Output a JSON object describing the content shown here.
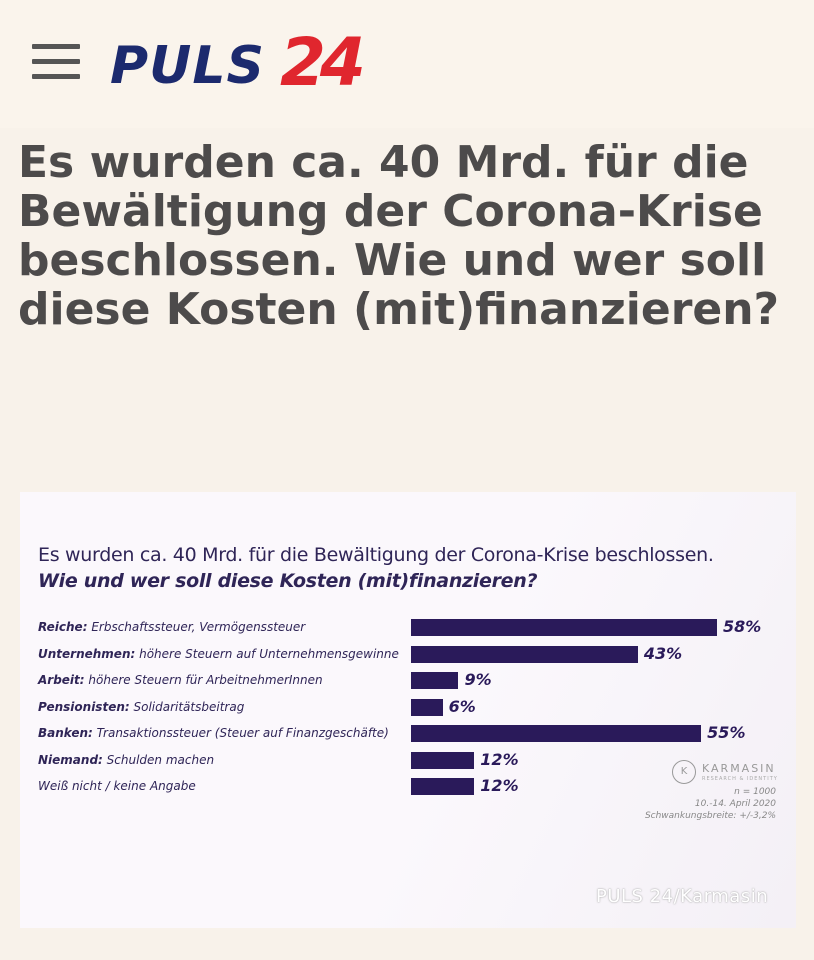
{
  "header": {
    "logo_puls": "PULS",
    "logo_24": "24"
  },
  "headline": "Es wurden ca. 40 Mrd. für die Bewältigung der Corona-Krise beschlossen. Wie und wer soll diese Kosten (mit)finanzieren?",
  "chart_data": {
    "type": "bar",
    "orientation": "horizontal",
    "title": "Es wurden ca. 40 Mrd. für die Bewältigung der Corona-Krise beschlossen.",
    "subtitle": "Wie und wer soll diese Kosten (mit)finanzieren?",
    "categories": [
      {
        "bold": "Reiche:",
        "rest": " Erbschaftssteuer, Vermögenssteuer"
      },
      {
        "bold": "Unternehmen:",
        "rest": " höhere Steuern auf Unternehmensgewinne"
      },
      {
        "bold": "Arbeit:",
        "rest": " höhere Steuern für ArbeitnehmerInnen"
      },
      {
        "bold": "Pensionisten:",
        "rest": " Solidaritätsbeitrag"
      },
      {
        "bold": "Banken:",
        "rest": " Transaktionssteuer (Steuer auf Finanzgeschäfte)"
      },
      {
        "bold": "Niemand:",
        "rest": " Schulden machen"
      },
      {
        "bold": "",
        "rest": "Weiß nicht / keine Angabe"
      }
    ],
    "values": [
      58,
      43,
      9,
      6,
      55,
      12,
      12
    ],
    "value_labels": [
      "58%",
      "43%",
      "9%",
      "6%",
      "55%",
      "12%",
      "12%"
    ],
    "unit": "%",
    "bar_color": "#2a1a5a",
    "xlim": [
      0,
      58
    ]
  },
  "source": {
    "brand": "KARMASIN",
    "brand_sub": "RESEARCH & IDENTITY",
    "n": "n = 1000",
    "date": "10.-14. April 2020",
    "margin": "Schwankungsbreite: +/-3,2%"
  },
  "watermark": "PULS 24/Karmasin",
  "colors": {
    "logo_blue": "#1c2a6e",
    "logo_red": "#e0262e",
    "headline": "#4d4b4b",
    "chart_text": "#2f2557"
  }
}
